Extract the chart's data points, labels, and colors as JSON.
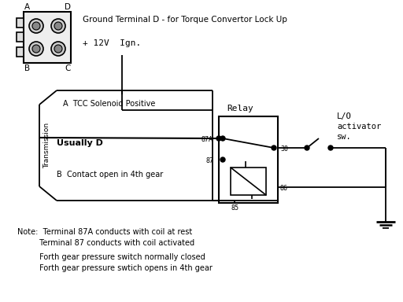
{
  "background_color": "#ffffff",
  "line_color": "#000000",
  "header_text": "Ground Terminal D - for Torque Convertor Lock Up",
  "ignition_text": "+ 12V  Ign.",
  "transmission_label": "Transmission",
  "tcc_label": "A  TCC Solenoid Positive",
  "usually_d_label": "Usually D",
  "contact_label": "B  Contact open in 4th gear",
  "relay_label": "Relay",
  "lo_label": "L/O\nactivator\nsw.",
  "pin_85": "85",
  "pin_86": "86",
  "pin_87": "87",
  "pin_87A": "87A",
  "pin_30": "30",
  "label_A": "A",
  "label_B": "B",
  "label_C": "C",
  "label_D": "D",
  "note1": "Note:  Terminal 87A conducts with coil at rest",
  "note2": "         Terminal 87 conducts with coil activated",
  "note3": "         Forth gear pressure switch normally closed",
  "note4": "         Forth gear pressure swtich opens in 4th gear"
}
